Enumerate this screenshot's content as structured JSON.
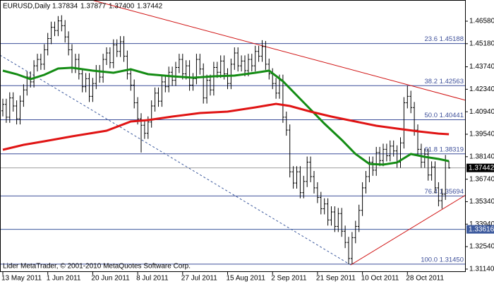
{
  "chart_data": {
    "type": "ohlc",
    "title": "EURUSD,Daily",
    "header_values": [
      "1.37834",
      "1.37877",
      "1.37400",
      "1.37442"
    ],
    "footer": "Lider MetaTrader, © 2001-2010 MetaQuotes Software Corp.",
    "bar_color": "#000000",
    "ylim": [
      1.3096,
      1.479
    ],
    "yticks": [
      {
        "value": 1.4658,
        "label": "1.46580"
      },
      {
        "value": 1.4518,
        "label": "1.45180"
      },
      {
        "value": 1.4374,
        "label": "1.43740"
      },
      {
        "value": 1.4234,
        "label": "1.42340"
      },
      {
        "value": 1.4094,
        "label": "1.40940"
      },
      {
        "value": 1.3954,
        "label": "1.39540"
      },
      {
        "value": 1.3814,
        "label": "1.38140"
      },
      {
        "value": 1.3674,
        "label": "1.36740"
      },
      {
        "value": 1.3534,
        "label": "1.35340"
      },
      {
        "value": 1.3394,
        "label": "1.33940"
      },
      {
        "value": 1.3254,
        "label": "1.32540"
      },
      {
        "value": 1.3114,
        "label": "1.31140"
      }
    ],
    "categories": [
      "13 May 2011",
      null,
      null,
      null,
      null,
      null,
      null,
      null,
      null,
      null,
      null,
      null,
      null,
      "1 Jun 2011",
      null,
      null,
      null,
      null,
      null,
      null,
      null,
      null,
      null,
      null,
      null,
      null,
      "20 Jun 2011",
      null,
      null,
      null,
      null,
      null,
      null,
      null,
      null,
      null,
      null,
      null,
      null,
      "8 Jul 2011",
      null,
      null,
      null,
      null,
      null,
      null,
      null,
      null,
      null,
      null,
      null,
      null,
      "27 Jul 2011",
      null,
      null,
      null,
      null,
      null,
      null,
      null,
      null,
      null,
      null,
      null,
      null,
      "15 Aug 2011",
      null,
      null,
      null,
      null,
      null,
      null,
      null,
      null,
      null,
      null,
      null,
      null,
      "2 Sep 2011",
      null,
      null,
      null,
      null,
      null,
      null,
      null,
      null,
      null,
      null,
      null,
      null,
      "21 Sep 2011",
      null,
      null,
      null,
      null,
      null,
      null,
      null,
      null,
      null,
      null,
      null,
      null,
      "10 Oct 2011",
      null,
      null,
      null,
      null,
      null,
      null,
      null,
      null,
      null,
      null,
      null,
      null,
      "28 Oct 2011",
      null,
      null,
      null,
      null,
      null,
      null,
      null,
      null,
      null,
      null,
      null,
      null
    ],
    "open": [
      1.41,
      1.414,
      1.406,
      1.418,
      1.413,
      1.405,
      1.416,
      1.423,
      1.431,
      1.428,
      1.438,
      1.442,
      1.439,
      1.448,
      1.455,
      1.462,
      1.46,
      1.466,
      1.463,
      1.456,
      1.448,
      1.437,
      1.442,
      1.433,
      1.425,
      1.43,
      1.419,
      1.427,
      1.435,
      1.431,
      1.442,
      1.446,
      1.44,
      1.451,
      1.447,
      1.453,
      1.444,
      1.433,
      1.426,
      1.415,
      1.405,
      1.401,
      1.396,
      1.403,
      1.413,
      1.421,
      1.416,
      1.428,
      1.425,
      1.434,
      1.429,
      1.437,
      1.442,
      1.433,
      1.438,
      1.426,
      1.43,
      1.442,
      1.436,
      1.418,
      1.429,
      1.423,
      1.437,
      1.434,
      1.441,
      1.433,
      1.427,
      1.439,
      1.446,
      1.438,
      1.441,
      1.435,
      1.442,
      1.438,
      1.447,
      1.444,
      1.45,
      1.439,
      1.433,
      1.427,
      1.421,
      1.429,
      1.406,
      1.398,
      1.372,
      1.365,
      1.372,
      1.359,
      1.366,
      1.378,
      1.369,
      1.362,
      1.356,
      1.349,
      1.352,
      1.342,
      1.347,
      1.338,
      1.346,
      1.335,
      1.328,
      1.318,
      1.331,
      1.338,
      1.348,
      1.362,
      1.369,
      1.378,
      1.373,
      1.384,
      1.379,
      1.386,
      1.382,
      1.388,
      1.385,
      1.378,
      1.39,
      1.415,
      1.419,
      1.412,
      1.398,
      1.386,
      1.378,
      1.383,
      1.37,
      1.375,
      1.362,
      1.354,
      1.358,
      1.37834
    ],
    "high": [
      1.4175,
      1.4175,
      1.4215,
      1.4215,
      1.4165,
      1.4195,
      1.4265,
      1.4345,
      1.4345,
      1.4415,
      1.4455,
      1.4455,
      1.4515,
      1.4585,
      1.4655,
      1.4655,
      1.469,
      1.4695,
      1.4665,
      1.4595,
      1.4515,
      1.4455,
      1.4455,
      1.4365,
      1.4335,
      1.4335,
      1.4305,
      1.4385,
      1.4385,
      1.4455,
      1.4495,
      1.4495,
      1.4545,
      1.4545,
      1.4565,
      1.4565,
      1.4475,
      1.4365,
      1.4295,
      1.4185,
      1.4085,
      1.4045,
      1.4065,
      1.4165,
      1.4245,
      1.4245,
      1.4315,
      1.4315,
      1.4375,
      1.4375,
      1.4405,
      1.4455,
      1.4455,
      1.4415,
      1.4415,
      1.4335,
      1.4455,
      1.4455,
      1.4395,
      1.4325,
      1.4325,
      1.4405,
      1.4405,
      1.4445,
      1.4445,
      1.4365,
      1.4425,
      1.4495,
      1.4495,
      1.4445,
      1.4445,
      1.4455,
      1.4455,
      1.4505,
      1.4505,
      1.454,
      1.4535,
      1.4425,
      1.4365,
      1.4305,
      1.4325,
      1.4325,
      1.4095,
      1.4015,
      1.3755,
      1.3755,
      1.3755,
      1.3695,
      1.3815,
      1.3815,
      1.3725,
      1.3655,
      1.3595,
      1.3555,
      1.3555,
      1.3505,
      1.3505,
      1.3495,
      1.3495,
      1.3385,
      1.3315,
      1.3345,
      1.3415,
      1.3515,
      1.3655,
      1.3725,
      1.3815,
      1.3815,
      1.3875,
      1.3875,
      1.3895,
      1.3895,
      1.3915,
      1.3915,
      1.3885,
      1.3935,
      1.4185,
      1.4256,
      1.4225,
      1.4155,
      1.4015,
      1.3895,
      1.3865,
      1.3865,
      1.3785,
      1.3785,
      1.3655,
      1.3615,
      1.3825,
      1.37877
    ],
    "low": [
      1.4065,
      1.4025,
      1.4025,
      1.4095,
      1.4015,
      1.4015,
      1.4125,
      1.4195,
      1.4245,
      1.4245,
      1.4345,
      1.4355,
      1.4355,
      1.4445,
      1.4515,
      1.4565,
      1.4565,
      1.4595,
      1.4525,
      1.4445,
      1.4335,
      1.4335,
      1.4295,
      1.4215,
      1.4215,
      1.4155,
      1.4155,
      1.4235,
      1.4275,
      1.4275,
      1.4385,
      1.4365,
      1.4365,
      1.4435,
      1.4435,
      1.4405,
      1.4295,
      1.4225,
      1.4115,
      1.4015,
      1.384,
      1.3925,
      1.3925,
      1.3995,
      1.4095,
      1.4125,
      1.4125,
      1.4215,
      1.4215,
      1.4255,
      1.4255,
      1.4335,
      1.4295,
      1.4295,
      1.4225,
      1.4225,
      1.4265,
      1.4325,
      1.4145,
      1.4145,
      1.4195,
      1.4195,
      1.4305,
      1.4305,
      1.4295,
      1.4235,
      1.4235,
      1.4355,
      1.4345,
      1.4345,
      1.4315,
      1.4315,
      1.4345,
      1.4345,
      1.4405,
      1.4405,
      1.4355,
      1.4295,
      1.4235,
      1.4175,
      1.4175,
      1.4025,
      1.3945,
      1.3685,
      1.3615,
      1.3615,
      1.3555,
      1.3555,
      1.3625,
      1.3655,
      1.3585,
      1.3525,
      1.3455,
      1.3455,
      1.3385,
      1.3385,
      1.3345,
      1.3345,
      1.3315,
      1.3245,
      1.3145,
      1.3145,
      1.3275,
      1.3345,
      1.3445,
      1.3585,
      1.3655,
      1.3695,
      1.3695,
      1.3755,
      1.3755,
      1.3785,
      1.3785,
      1.3815,
      1.3745,
      1.3745,
      1.3865,
      1.4115,
      1.4085,
      1.3945,
      1.3825,
      1.3745,
      1.3745,
      1.3665,
      1.3665,
      1.3585,
      1.3505,
      1.349,
      1.3545,
      1.374
    ],
    "close": [
      1.414,
      1.406,
      1.418,
      1.413,
      1.405,
      1.416,
      1.423,
      1.431,
      1.428,
      1.438,
      1.442,
      1.439,
      1.448,
      1.455,
      1.462,
      1.46,
      1.466,
      1.463,
      1.456,
      1.448,
      1.437,
      1.442,
      1.433,
      1.425,
      1.43,
      1.419,
      1.427,
      1.435,
      1.431,
      1.442,
      1.446,
      1.44,
      1.451,
      1.447,
      1.453,
      1.444,
      1.433,
      1.426,
      1.415,
      1.405,
      1.401,
      1.396,
      1.403,
      1.413,
      1.421,
      1.416,
      1.428,
      1.425,
      1.434,
      1.429,
      1.437,
      1.442,
      1.433,
      1.438,
      1.426,
      1.43,
      1.442,
      1.436,
      1.418,
      1.429,
      1.423,
      1.437,
      1.434,
      1.441,
      1.433,
      1.427,
      1.439,
      1.446,
      1.438,
      1.441,
      1.435,
      1.442,
      1.438,
      1.447,
      1.444,
      1.45,
      1.439,
      1.433,
      1.427,
      1.421,
      1.429,
      1.406,
      1.398,
      1.372,
      1.365,
      1.372,
      1.359,
      1.366,
      1.378,
      1.369,
      1.362,
      1.356,
      1.349,
      1.352,
      1.342,
      1.347,
      1.338,
      1.346,
      1.335,
      1.328,
      1.318,
      1.331,
      1.338,
      1.348,
      1.362,
      1.369,
      1.378,
      1.373,
      1.384,
      1.379,
      1.386,
      1.382,
      1.388,
      1.385,
      1.378,
      1.39,
      1.415,
      1.419,
      1.412,
      1.398,
      1.386,
      1.378,
      1.383,
      1.37,
      1.375,
      1.362,
      1.354,
      1.358,
      1.379,
      1.37442
    ],
    "indicators": [
      {
        "color": "#148c14",
        "x": [
          0,
          4,
          8,
          12,
          16,
          20,
          26,
          32,
          37,
          42,
          49,
          55,
          61,
          67,
          73,
          77,
          81,
          85,
          89,
          93,
          98,
          102,
          106,
          110,
          114,
          118,
          122,
          126,
          129
        ],
        "values": [
          1.435,
          1.4328,
          1.4297,
          1.4324,
          1.4363,
          1.4368,
          1.435,
          1.4337,
          1.4359,
          1.4328,
          1.4315,
          1.4306,
          1.4315,
          1.4319,
          1.4337,
          1.435,
          1.4284,
          1.4196,
          1.4108,
          1.402,
          1.3919,
          1.3831,
          1.3769,
          1.3765,
          1.3778,
          1.3831,
          1.3813,
          1.38,
          1.3787
        ]
      },
      {
        "color": "#e01414",
        "x": [
          0,
          6,
          12,
          20,
          30,
          37,
          42,
          49,
          57,
          65,
          73,
          79,
          83,
          89,
          95,
          102,
          108,
          114,
          120,
          126,
          129
        ],
        "values": [
          1.3857,
          1.3888,
          1.391,
          1.3941,
          1.3976,
          1.4033,
          1.4042,
          1.4064,
          1.4086,
          1.4095,
          1.4121,
          1.4143,
          1.413,
          1.4095,
          1.4064,
          1.4033,
          1.4007,
          1.3989,
          1.3972,
          1.3958,
          1.3954
        ]
      }
    ],
    "fib_color": "#3d4f9a",
    "fib_levels": [
      {
        "value": 1.45188,
        "label": "23.6 1.45188"
      },
      {
        "value": 1.42563,
        "label": "38.2 1.42563"
      },
      {
        "value": 1.40441,
        "label": "50.0 1.40441"
      },
      {
        "value": 1.38319,
        "label": "61.8 1.38319"
      },
      {
        "value": 1.35694,
        "label": "76.4 1.35694"
      },
      {
        "value": 1.3145,
        "label": "100.0 1.31450"
      }
    ],
    "hline": {
      "value": 1.33616,
      "label": "1.33616",
      "color": "#3d5a9e"
    },
    "current_price": {
      "value": 1.37442,
      "label": "1.37442",
      "color": "#a0a0a0"
    }
  }
}
